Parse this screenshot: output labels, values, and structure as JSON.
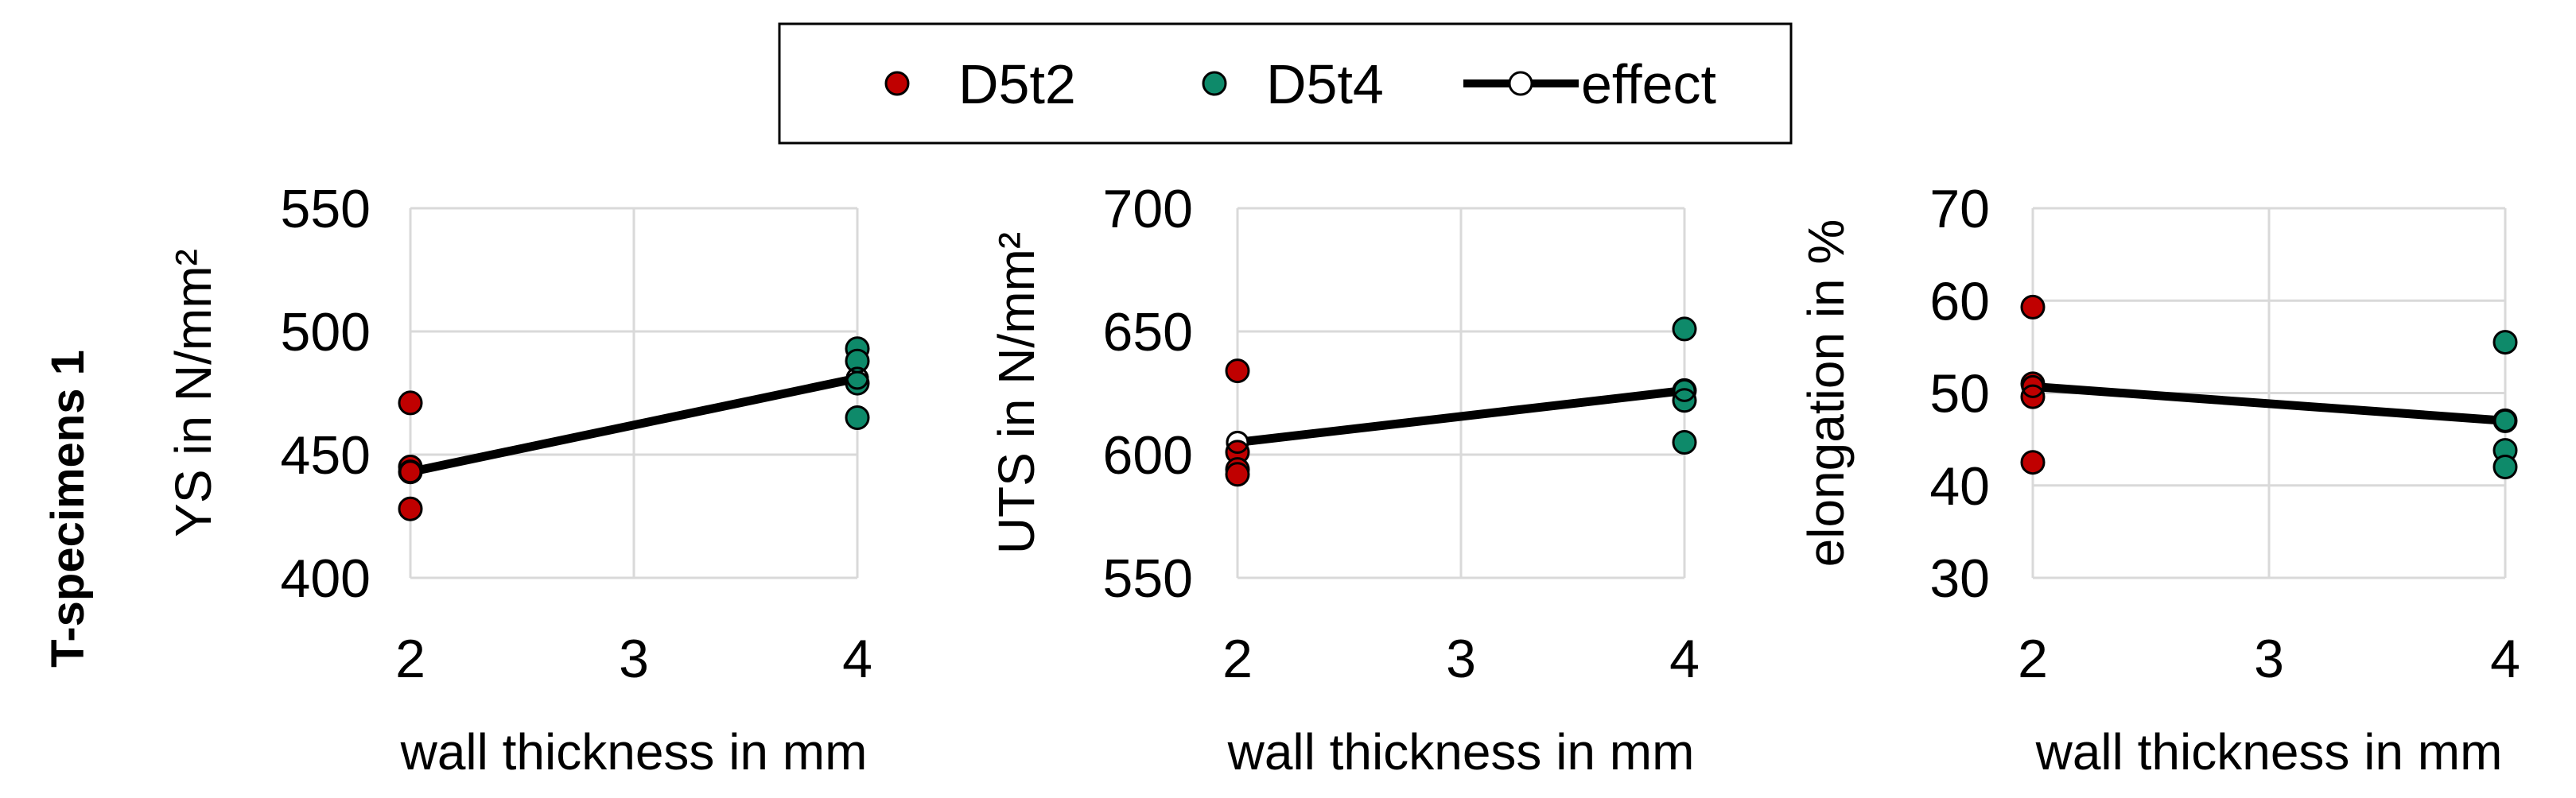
{
  "row_label": "T-specimens 1",
  "legend": {
    "entries": [
      {
        "label": "D5t2",
        "marker": "dot",
        "color": "#c00000"
      },
      {
        "label": "D5t4",
        "marker": "dot",
        "color": "#0e8a6a"
      },
      {
        "label": "effect",
        "marker": "line-open-dot",
        "color": "#000000"
      }
    ]
  },
  "colors": {
    "d5t2": "#c00000",
    "d5t4": "#0e8a6a",
    "effect": "#000000",
    "grid": "#d9d9d9"
  },
  "chart_data": [
    {
      "type": "scatter",
      "xlabel": "wall thickness in mm",
      "ylabel": "YS in N/mm²",
      "xlim": [
        2,
        4
      ],
      "ylim": [
        400,
        550
      ],
      "xticks": [
        2,
        3,
        4
      ],
      "yticks": [
        400,
        450,
        500,
        550
      ],
      "xtick_labels": [
        "2",
        "3",
        "4"
      ],
      "ytick_labels": [
        "400",
        "450",
        "500",
        "550"
      ],
      "grid": true,
      "series": [
        {
          "name": "D5t2",
          "x": [
            2,
            2,
            2,
            2
          ],
          "y": [
            471,
            445,
            443,
            428
          ]
        },
        {
          "name": "D5t4",
          "x": [
            4,
            4,
            4,
            4
          ],
          "y": [
            493,
            488,
            479,
            465
          ]
        },
        {
          "name": "effect",
          "x": [
            2,
            4
          ],
          "y": [
            443,
            481
          ]
        }
      ]
    },
    {
      "type": "scatter",
      "xlabel": "wall thickness in mm",
      "ylabel": "UTS in N/mm²",
      "xlim": [
        2,
        4
      ],
      "ylim": [
        550,
        700
      ],
      "xticks": [
        2,
        3,
        4
      ],
      "yticks": [
        550,
        600,
        650,
        700
      ],
      "xtick_labels": [
        "2",
        "3",
        "4"
      ],
      "ytick_labels": [
        "550",
        "600",
        "650",
        "700"
      ],
      "grid": true,
      "series": [
        {
          "name": "D5t2",
          "x": [
            2,
            2,
            2,
            2
          ],
          "y": [
            634,
            601,
            594,
            592
          ]
        },
        {
          "name": "D5t4",
          "x": [
            4,
            4,
            4,
            4
          ],
          "y": [
            651,
            626,
            622,
            605
          ]
        },
        {
          "name": "effect",
          "x": [
            2,
            4
          ],
          "y": [
            605,
            626
          ]
        }
      ]
    },
    {
      "type": "scatter",
      "xlabel": "wall thickness in mm",
      "ylabel": "elongation in %",
      "xlim": [
        2,
        4
      ],
      "ylim": [
        30,
        70
      ],
      "xticks": [
        2,
        3,
        4
      ],
      "yticks": [
        30,
        40,
        50,
        60,
        70
      ],
      "xtick_labels": [
        "2",
        "3",
        "4"
      ],
      "ytick_labels": [
        "30",
        "40",
        "50",
        "60",
        "70"
      ],
      "grid": true,
      "series": [
        {
          "name": "D5t2",
          "x": [
            2,
            2,
            2,
            2
          ],
          "y": [
            59.3,
            51,
            49.6,
            42.5
          ]
        },
        {
          "name": "D5t4",
          "x": [
            4,
            4,
            4,
            4
          ],
          "y": [
            55.5,
            47,
            43.8,
            42
          ]
        },
        {
          "name": "effect",
          "x": [
            2,
            4
          ],
          "y": [
            50.7,
            47
          ]
        }
      ]
    }
  ]
}
